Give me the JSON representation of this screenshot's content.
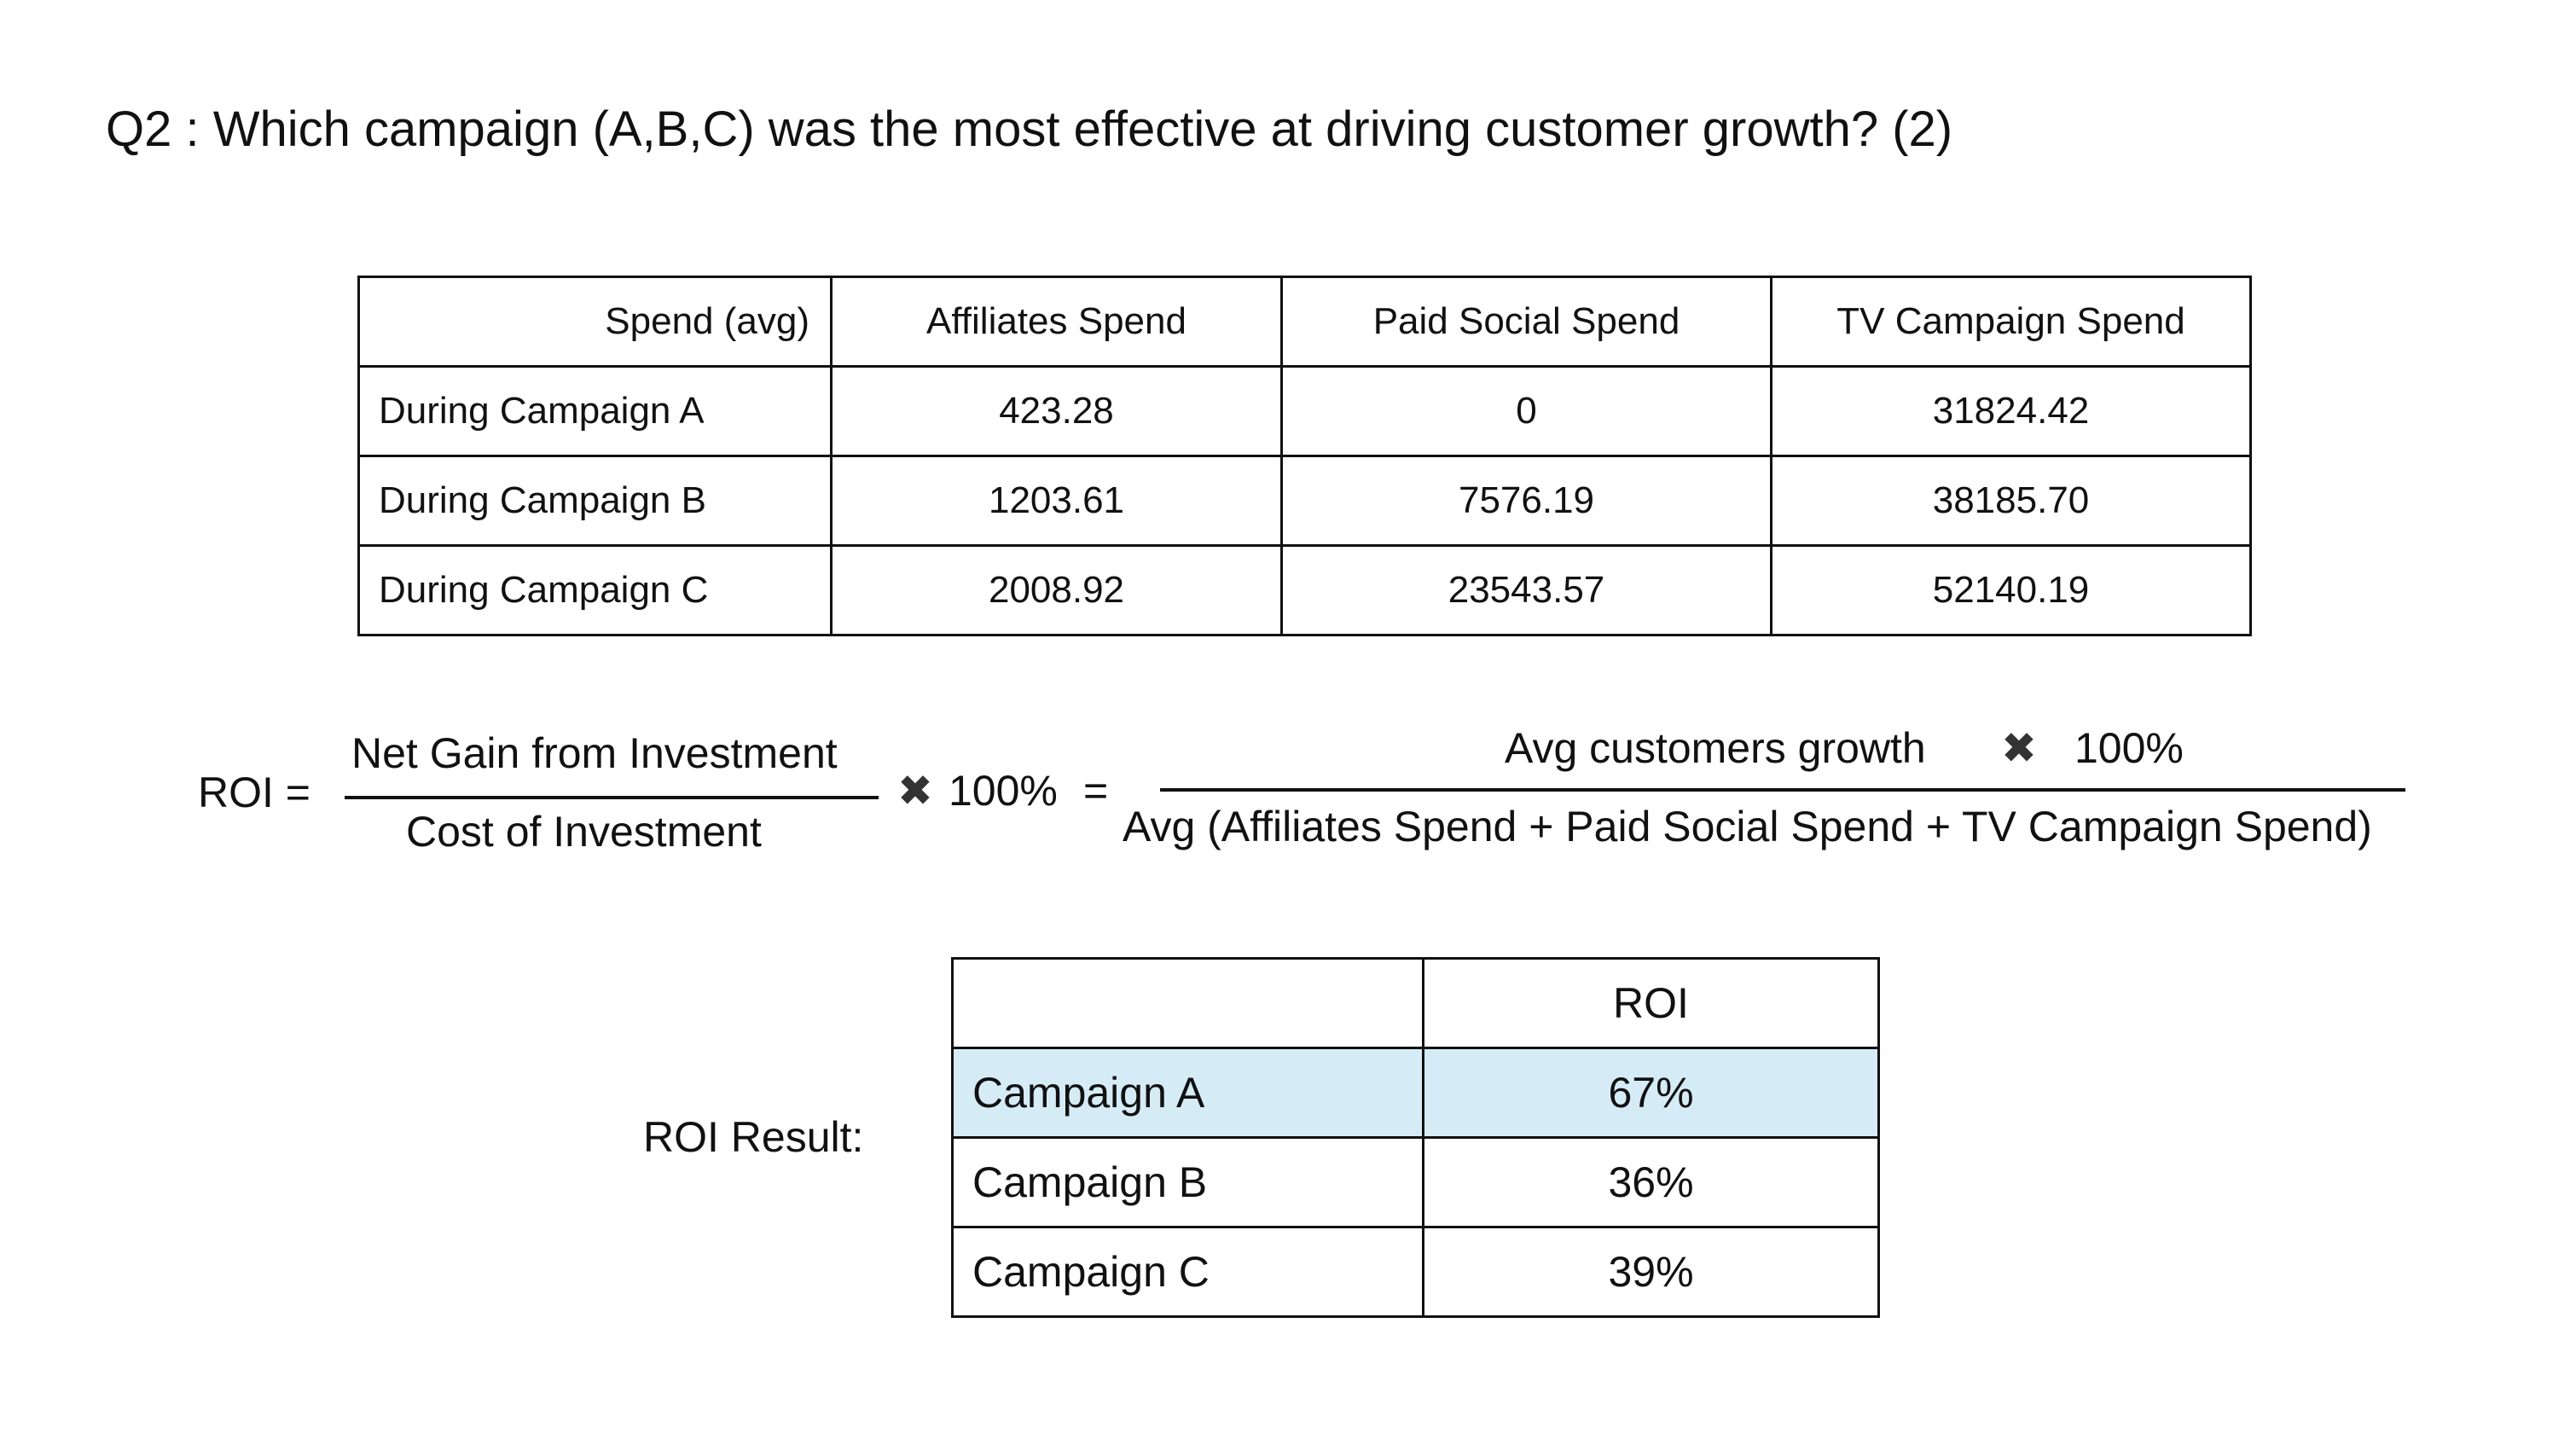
{
  "question": "Q2 : Which campaign (A,B,C) was the most effective at driving customer growth? (2)",
  "spend_table": {
    "header": [
      "Spend (avg)",
      "Affiliates Spend",
      "Paid Social Spend",
      "TV Campaign Spend"
    ],
    "rows": [
      [
        "During Campaign A",
        "423.28",
        "0",
        "31824.42"
      ],
      [
        "During Campaign B",
        "1203.61",
        "7576.19",
        "38185.70"
      ],
      [
        "During Campaign C",
        "2008.92",
        "23543.57",
        "52140.19"
      ]
    ]
  },
  "formula": {
    "lhs": "ROI =",
    "numerator": "Net Gain from Investment",
    "denominator": "Cost of Investment",
    "times_symbol": "✖",
    "multiplier": "100%",
    "equals": "=",
    "rhs_numerator": "Avg customers growth",
    "rhs_multiplier": "100%",
    "rhs_denominator": "Avg (Affiliates Spend + Paid Social Spend + TV Campaign Spend)"
  },
  "roi_label": "ROI Result:",
  "roi_table": {
    "header": [
      "",
      "ROI"
    ],
    "rows": [
      [
        "Campaign A",
        "67%"
      ],
      [
        "Campaign B",
        "36%"
      ],
      [
        "Campaign C",
        "39%"
      ]
    ],
    "highlight_row": 0,
    "highlight_color": "#d5ecf7"
  }
}
